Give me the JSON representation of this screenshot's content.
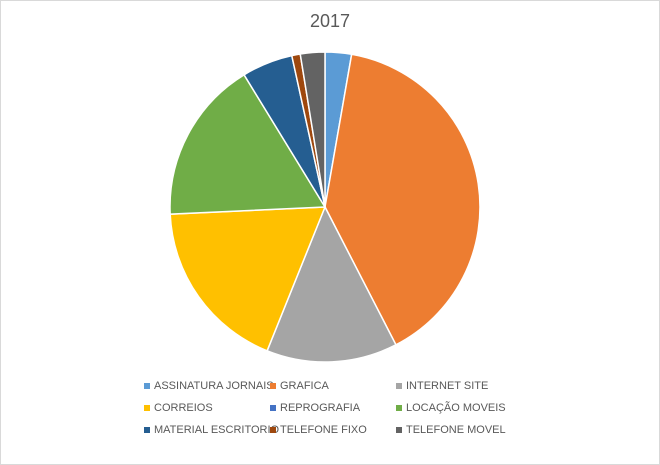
{
  "chart_data": {
    "type": "pie",
    "title": "2017",
    "legend_position": "bottom",
    "categories": [
      "ASSINATURA JORNAIS",
      "GRAFICA",
      "INTERNET SITE",
      "CORREIOS",
      "REPROGRAFIA",
      "LOCAÇÃO MOVEIS",
      "MATERIAL ESCRITORIO",
      "TELEFONE FIXO",
      "TELEFONE MOVEL"
    ],
    "values": [
      2.8,
      40.4,
      13.9,
      18.5,
      0.0,
      17.3,
      5.4,
      0.9,
      2.6
    ],
    "colors": [
      "#5B9BD5",
      "#ED7D31",
      "#A5A5A5",
      "#FFC000",
      "#4472C4",
      "#70AD47",
      "#255E91",
      "#9E480E",
      "#636363"
    ]
  }
}
